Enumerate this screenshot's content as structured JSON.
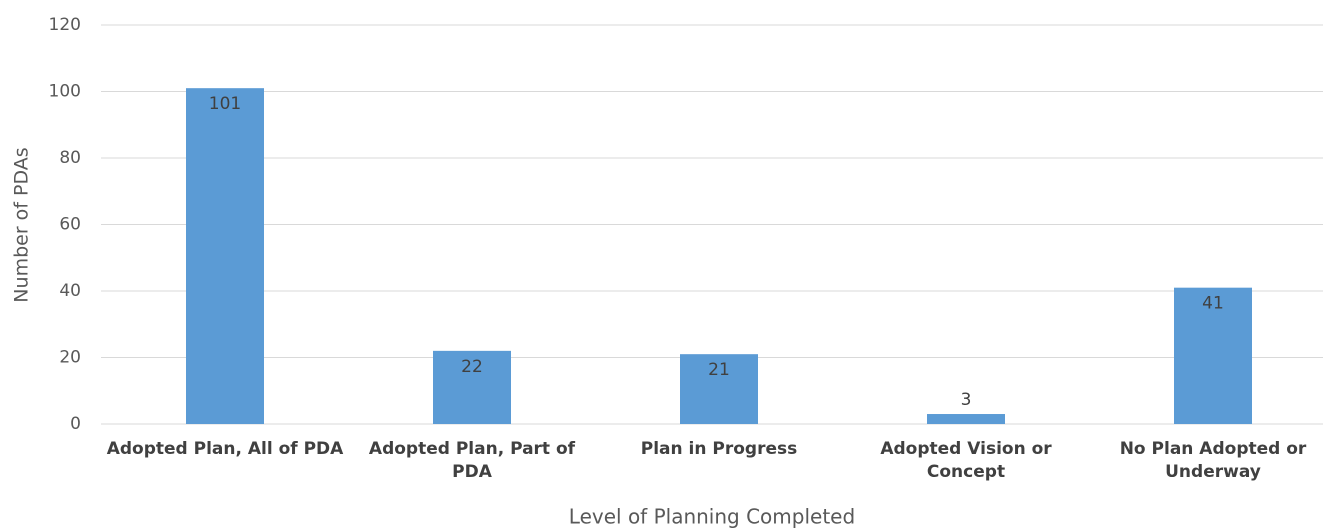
{
  "chart_data": {
    "type": "bar",
    "categories": [
      "Adopted Plan, All of PDA",
      "Adopted Plan, Part of PDA",
      "Plan in Progress",
      "Adopted Vision or Concept",
      "No Plan Adopted or Underway"
    ],
    "values": [
      101,
      22,
      21,
      3,
      41
    ],
    "color": "#5b9bd5",
    "x_label": "Level of Planning Completed",
    "y_label": "Number of PDAs",
    "ylim": [
      0,
      120
    ],
    "yticks": [
      0,
      20,
      40,
      60,
      80,
      100,
      120
    ],
    "grid": true
  }
}
